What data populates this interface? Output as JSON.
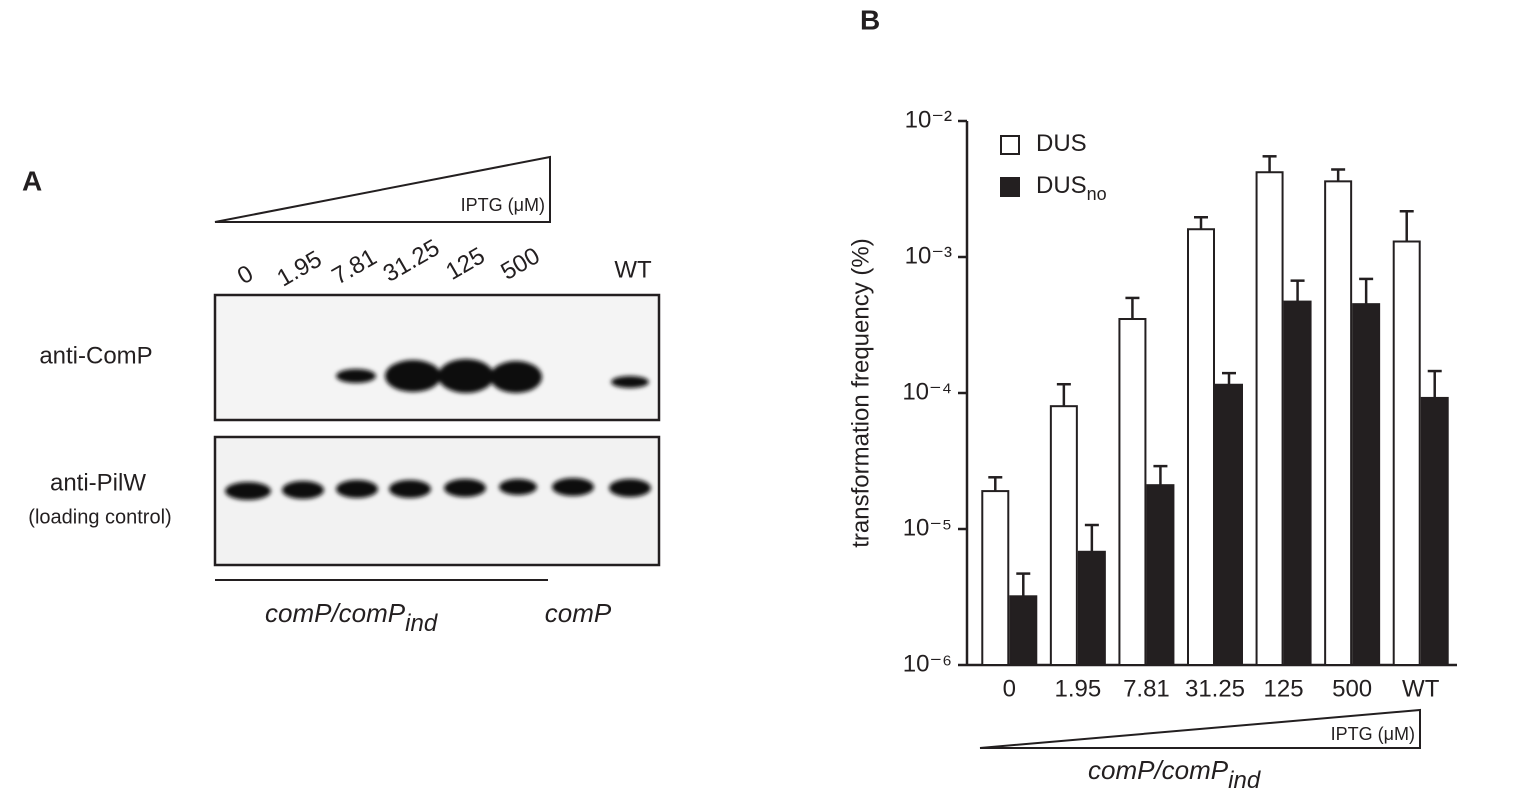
{
  "panel_a": {
    "label": "A",
    "gradient_label": "IPTG (μM)",
    "lanes": [
      "0",
      "1.95",
      "7.81",
      "31.25",
      "125",
      "500",
      "WT"
    ],
    "rows": [
      "anti-ComP",
      "anti-PilW",
      "(loading control)"
    ],
    "strain_main": "comP/comP",
    "strain_sub": "ind",
    "strain_other": "comP"
  },
  "chart_data": {
    "type": "bar",
    "panel_label": "B",
    "y_label": "transformation frequency (%)",
    "x_gradient_label": "IPTG (μM)",
    "x_strain_main": "comP/comP",
    "x_strain_sub": "ind",
    "categories": [
      "0",
      "1.95",
      "7.81",
      "31.25",
      "125",
      "500",
      "WT"
    ],
    "series": [
      {
        "name": "DUS",
        "color": "#ffffff",
        "values": [
          1.9e-05,
          8e-05,
          0.00035,
          0.0016,
          0.0042,
          0.0036,
          0.0013
        ],
        "errors": [
          5e-06,
          3.6e-05,
          0.00015,
          0.00036,
          0.0013,
          0.0008,
          0.00087
        ]
      },
      {
        "name": "DUS",
        "name_sub": "no",
        "color": "#231f20",
        "values": [
          3.2e-06,
          6.8e-06,
          2.1e-05,
          0.000115,
          0.00047,
          0.00045,
          9.2e-05
        ],
        "errors": [
          1.5e-06,
          3.9e-06,
          8e-06,
          2.5e-05,
          0.0002,
          0.00024,
          5.3e-05
        ]
      }
    ],
    "log_scale": true,
    "ylim": [
      1e-06,
      0.01
    ],
    "yticks": [
      {
        "value": 1e-06,
        "label": "10⁻⁶"
      },
      {
        "value": 1e-05,
        "label": "10⁻⁵"
      },
      {
        "value": 0.0001,
        "label": "10⁻⁴"
      },
      {
        "value": 0.001,
        "label": "10⁻³"
      },
      {
        "value": 0.01,
        "label": "10⁻²"
      }
    ]
  }
}
